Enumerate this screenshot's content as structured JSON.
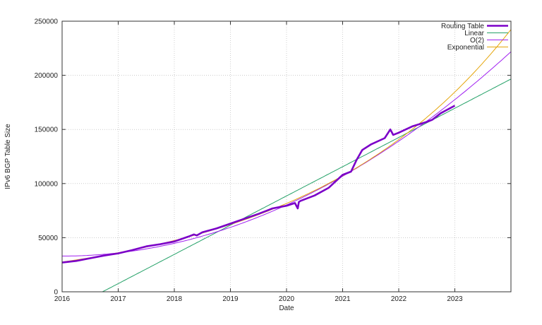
{
  "chart_data": {
    "type": "line",
    "title": "",
    "xlabel": "Date",
    "ylabel": "IPv6 BGP Table Size",
    "xlim": [
      2016,
      2024
    ],
    "ylim": [
      0,
      250000
    ],
    "x_ticks": [
      2016,
      2017,
      2018,
      2019,
      2020,
      2021,
      2022,
      2023
    ],
    "x_tick_labels": [
      "2016",
      "2017",
      "2018",
      "2019",
      "2020",
      "2021",
      "2022",
      "2023"
    ],
    "y_ticks": [
      0,
      50000,
      100000,
      150000,
      200000,
      250000
    ],
    "y_tick_labels": [
      "0",
      "50000",
      "100000",
      "150000",
      "200000",
      "250000"
    ],
    "grid": true,
    "legend_position": "top-right",
    "series": [
      {
        "name": "Routing Table",
        "color": "#7b00c8",
        "style": "thick",
        "x": [
          2016.0,
          2016.25,
          2016.5,
          2016.75,
          2017.0,
          2017.25,
          2017.5,
          2017.75,
          2018.0,
          2018.25,
          2018.35,
          2018.4,
          2018.5,
          2018.75,
          2019.0,
          2019.25,
          2019.5,
          2019.75,
          2020.0,
          2020.15,
          2020.2,
          2020.22,
          2020.25,
          2020.5,
          2020.75,
          2021.0,
          2021.15,
          2021.25,
          2021.35,
          2021.5,
          2021.75,
          2021.85,
          2021.9,
          2022.0,
          2022.25,
          2022.5,
          2022.6,
          2022.75,
          2023.0
        ],
        "y": [
          27000,
          28500,
          31000,
          33500,
          35500,
          38500,
          42000,
          44000,
          46500,
          51000,
          53000,
          52000,
          55000,
          58500,
          63000,
          67500,
          72000,
          77000,
          79500,
          82000,
          77000,
          83000,
          84000,
          89000,
          96000,
          108000,
          111000,
          122000,
          131000,
          136000,
          142000,
          150000,
          145000,
          147000,
          153000,
          157000,
          159000,
          165000,
          172000
        ]
      },
      {
        "name": "Linear",
        "color": "#26a269",
        "fn": "linear",
        "params": {
          "x0": 2016.72,
          "slope": 27000
        }
      },
      {
        "name": "O(2)",
        "color": "#a020f0",
        "fn": "quadratic",
        "params": {
          "a": 33000,
          "b": 0,
          "c": 2950
        }
      },
      {
        "name": "Exponential",
        "color": "#e5a50a",
        "fn": "exponential",
        "params": {
          "a": 27500,
          "k": 0.272
        }
      }
    ]
  }
}
